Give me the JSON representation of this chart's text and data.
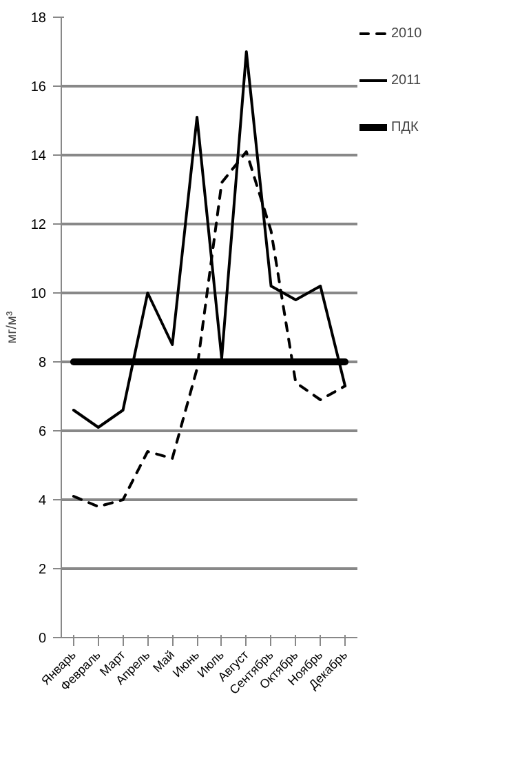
{
  "chart_data": {
    "type": "line",
    "ylabel": "мг/м³",
    "categories": [
      "Январь",
      "Февраль",
      "Март",
      "Апрель",
      "Май",
      "Июнь",
      "Июль",
      "Август",
      "Сентябрь",
      "Октябрь",
      "Ноябрь",
      "Декабрь"
    ],
    "series": [
      {
        "name": "2010",
        "color": "#000000",
        "line_style": "dashed",
        "values": [
          4.1,
          3.8,
          4.0,
          5.4,
          5.2,
          7.8,
          13.2,
          14.1,
          11.8,
          7.4,
          6.9,
          7.3
        ]
      },
      {
        "name": "2011",
        "color": "#000000",
        "line_style": "solid",
        "values": [
          6.6,
          6.1,
          6.6,
          10.0,
          8.5,
          15.1,
          8.1,
          17.0,
          10.2,
          9.8,
          10.2,
          7.3
        ]
      },
      {
        "name": "ПДК",
        "color": "#000000",
        "line_style": "solid",
        "values": [
          8,
          8,
          8,
          8,
          8,
          8,
          8,
          8,
          8,
          8,
          8,
          8
        ]
      }
    ],
    "ylim": [
      0,
      18
    ],
    "yticks": [
      0,
      2,
      4,
      6,
      8,
      10,
      12,
      14,
      16,
      18
    ],
    "grid": "y",
    "legend": "right",
    "marker": "none"
  }
}
